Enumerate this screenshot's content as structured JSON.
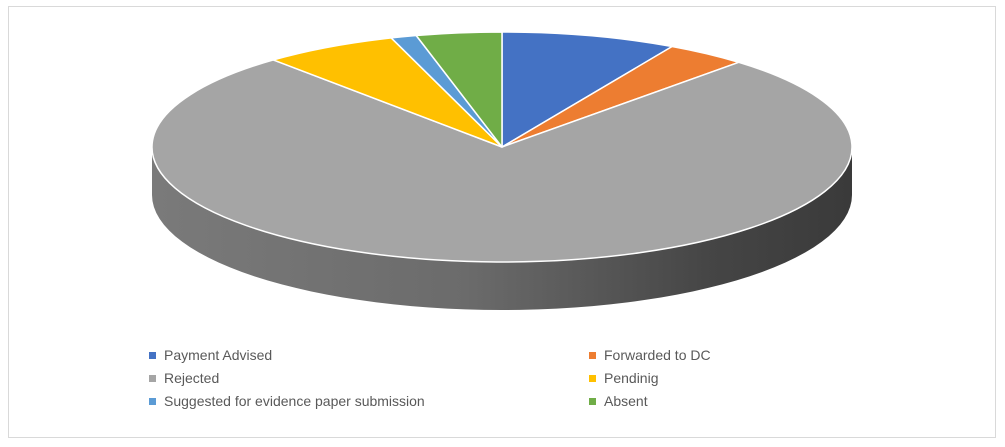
{
  "chart_data": {
    "type": "pie",
    "style": "3d",
    "categories": [
      "Payment Advised",
      "Forwarded to DC",
      "Rejected",
      "Pendinig",
      "Suggested for evidence paper submission",
      "Absent"
    ],
    "values": [
      8.2,
      3.8,
      78.0,
      6.3,
      1.2,
      4.0
    ],
    "colors": [
      "#4472C4",
      "#ED7D31",
      "#A5A5A5",
      "#FFC000",
      "#5B9BD5",
      "#70AD47"
    ],
    "legend_position": "bottom"
  }
}
